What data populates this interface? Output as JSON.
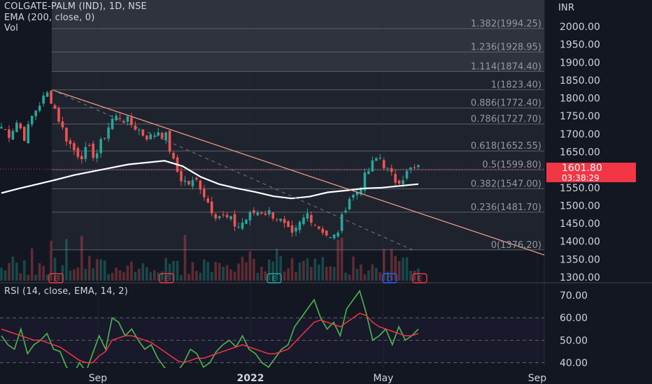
{
  "header": {
    "symbol": "COLGATE-PALM (IND), 1D, NSE",
    "ema_label": "EMA (200, close, 0)",
    "vol_label": "Vol"
  },
  "rsi_label": "RSI (14, close, EMA, 14, 2)",
  "currency": "INR",
  "last_price": "1601.80",
  "countdown": "03:38:29",
  "colors": {
    "background": "#131722",
    "up_candle": "#26a69a",
    "down_candle": "#ef5350",
    "ema_line": "#ffffff",
    "trendline": "#f7a58a",
    "fib_line": "#5d606b",
    "rsi_line": "#4caf50",
    "rsi_ema_line": "#f23645",
    "price_tag": "#f23645"
  },
  "chart_data": [
    {
      "type": "candlestick",
      "title": "COLGATE-PALM (IND), 1D, NSE",
      "ylabel": "INR",
      "ylim": [
        1300,
        2020
      ],
      "y_ticks": [
        "2000.00",
        "1950.00",
        "1900.00",
        "1850.00",
        "1800.00",
        "1750.00",
        "1700.00",
        "1650.00",
        "1600.00",
        "1550.00",
        "1500.00",
        "1450.00",
        "1400.00",
        "1350.00",
        "1300.00"
      ],
      "x_ticks": [
        "Sep",
        "2022",
        "May",
        "Sep"
      ],
      "fib_levels": [
        {
          "label": "1.382(1994.25)",
          "value": 1994.25
        },
        {
          "label": "1.236(1928.95)",
          "value": 1928.95
        },
        {
          "label": "1.114(1874.40)",
          "value": 1874.4
        },
        {
          "label": "1(1823.40)",
          "value": 1823.4
        },
        {
          "label": "0.886(1772.40)",
          "value": 1772.4
        },
        {
          "label": "0.786(1727.70)",
          "value": 1727.7
        },
        {
          "label": "0.618(1652.55)",
          "value": 1652.55
        },
        {
          "label": "0.5(1599.80)",
          "value": 1599.8
        },
        {
          "label": "0.382(1547.00)",
          "value": 1547.0
        },
        {
          "label": "0.236(1481.70)",
          "value": 1481.7
        },
        {
          "label": "0(1376.20)",
          "value": 1376.2
        }
      ],
      "event_markers": [
        "E",
        "E",
        "E",
        "D",
        "E"
      ],
      "close_path": [
        [
          "2021-06",
          1720
        ],
        [
          "2021-06",
          1700
        ],
        [
          "2021-06",
          1735
        ],
        [
          "2021-07",
          1690
        ],
        [
          "2021-07",
          1755
        ],
        [
          "2021-07",
          1790
        ],
        [
          "2021-07",
          1815
        ],
        [
          "2021-07",
          1760
        ],
        [
          "2021-07",
          1700
        ],
        [
          "2021-08",
          1660
        ],
        [
          "2021-08",
          1640
        ],
        [
          "2021-08",
          1655
        ],
        [
          "2021-08",
          1640
        ],
        [
          "2021-08",
          1690
        ],
        [
          "2021-08",
          1740
        ],
        [
          "2021-09",
          1750
        ],
        [
          "2021-09",
          1735
        ],
        [
          "2021-09",
          1720
        ],
        [
          "2021-09",
          1700
        ],
        [
          "2021-09",
          1690
        ],
        [
          "2021-10",
          1710
        ],
        [
          "2021-10",
          1690
        ],
        [
          "2021-10",
          1610
        ],
        [
          "2021-10",
          1570
        ],
        [
          "2021-11",
          1560
        ],
        [
          "2021-11",
          1570
        ],
        [
          "2021-11",
          1520
        ],
        [
          "2021-11",
          1480
        ],
        [
          "2021-12",
          1470
        ],
        [
          "2021-12",
          1460
        ],
        [
          "2021-12",
          1440
        ],
        [
          "2021-12",
          1460
        ],
        [
          "2022-01",
          1480
        ],
        [
          "2022-01",
          1485
        ],
        [
          "2022-01",
          1480
        ],
        [
          "2022-01",
          1470
        ],
        [
          "2022-02",
          1440
        ],
        [
          "2022-02",
          1410
        ],
        [
          "2022-02",
          1450
        ],
        [
          "2022-02",
          1480
        ],
        [
          "2022-03",
          1445
        ],
        [
          "2022-03",
          1430
        ],
        [
          "2022-03",
          1400
        ],
        [
          "2022-03",
          1440
        ],
        [
          "2022-04",
          1520
        ],
        [
          "2022-04",
          1530
        ],
        [
          "2022-04",
          1570
        ],
        [
          "2022-04",
          1610
        ],
        [
          "2022-04",
          1640
        ],
        [
          "2022-05",
          1600
        ],
        [
          "2022-05",
          1570
        ],
        [
          "2022-05",
          1580
        ],
        [
          "2022-05",
          1600
        ],
        [
          "2022-05",
          1602
        ]
      ],
      "ema_200_path": [
        1535,
        1548,
        1560,
        1572,
        1585,
        1595,
        1605,
        1615,
        1620,
        1625,
        1610,
        1580,
        1560,
        1548,
        1538,
        1526,
        1520,
        1525,
        1537,
        1542,
        1548,
        1550,
        1555,
        1560
      ]
    },
    {
      "type": "line",
      "title": "RSI (14, close, EMA, 14, 2)",
      "ylim": [
        35,
        75
      ],
      "y_ticks": [
        "70.00",
        "60.00",
        "50.00",
        "40.00"
      ],
      "bands": [
        60,
        40
      ],
      "series": [
        {
          "values": [
            52,
            48,
            46,
            55,
            44,
            48,
            50,
            53,
            46,
            45,
            38,
            35,
            40,
            36,
            44,
            52,
            46,
            60,
            58,
            52,
            55,
            50,
            46,
            48,
            42,
            38,
            35,
            36,
            40,
            46,
            44,
            38,
            40,
            45,
            48,
            50,
            47,
            52,
            46,
            44,
            40,
            38,
            42,
            46,
            48,
            56,
            60,
            64,
            68,
            60,
            55,
            58,
            52,
            64,
            68,
            72,
            62,
            50,
            52,
            55,
            48,
            56,
            50,
            52,
            55
          ]
        },
        {
          "values": [
            55,
            54,
            53,
            52,
            51,
            50,
            50,
            49,
            48,
            47,
            45,
            43,
            41,
            40,
            40,
            43,
            45,
            50,
            51,
            52,
            52,
            51,
            50,
            49,
            47,
            45,
            43,
            41,
            40,
            41,
            42,
            42,
            43,
            44,
            45,
            46,
            47,
            48,
            47,
            46,
            45,
            44,
            44,
            45,
            46,
            49,
            52,
            55,
            58,
            59,
            58,
            57,
            56,
            58,
            60,
            62,
            61,
            58,
            56,
            55,
            54,
            53,
            52,
            52,
            53
          ]
        }
      ]
    }
  ]
}
